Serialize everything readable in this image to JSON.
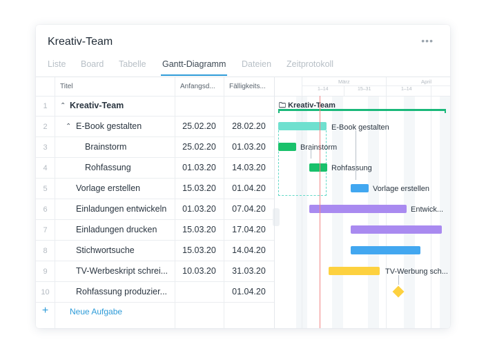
{
  "app": {
    "title": "Kreativ-Team",
    "more": "•••"
  },
  "tabs": [
    "Liste",
    "Board",
    "Tabelle",
    "Gantt-Diagramm",
    "Dateien",
    "Zeitprotokoll"
  ],
  "active_tab": "Gantt-Diagramm",
  "columns": {
    "title": "Titel",
    "start": "Anfangsd...",
    "due": "Fälligkeits..."
  },
  "rows": [
    {
      "num": "1",
      "title": "Kreativ-Team",
      "start": "",
      "due": ""
    },
    {
      "num": "2",
      "title": "E-Book gestalten",
      "start": "25.02.20",
      "due": "28.02.20"
    },
    {
      "num": "3",
      "title": "Brainstorm",
      "start": "25.02.20",
      "due": "01.03.20"
    },
    {
      "num": "4",
      "title": "Rohfassung",
      "start": "01.03.20",
      "due": "14.03.20"
    },
    {
      "num": "5",
      "title": "Vorlage erstellen",
      "start": "15.03.20",
      "due": "01.04.20"
    },
    {
      "num": "6",
      "title": "Einladungen entwickeln",
      "start": "01.03.20",
      "due": "07.04.20"
    },
    {
      "num": "7",
      "title": "Einladungen drucken",
      "start": "15.03.20",
      "due": "17.04.20"
    },
    {
      "num": "8",
      "title": "Stichwortsuche",
      "start": "15.03.20",
      "due": "14.04.20"
    },
    {
      "num": "9",
      "title": "TV-Werbeskript schrei...",
      "start": "10.03.20",
      "due": "31.03.20"
    },
    {
      "num": "10",
      "title": "Rohfassung produzier...",
      "start": "",
      "due": "01.04.20"
    }
  ],
  "new_task": {
    "icon": "+",
    "label": "Neue Aufgabe"
  },
  "timeline": {
    "months": [
      "März",
      "April"
    ],
    "weeks": [
      "1–14",
      "15–31",
      "1–14"
    ]
  },
  "gantt": {
    "project_label": "Kreativ-Team",
    "labels": [
      "E-Book gestalten",
      "Brainstorm",
      "Rohfassung",
      "Vorlage erstellen",
      "Entwick...",
      "TV-Werbung sch..."
    ]
  },
  "colors": {
    "accent": "#2d9bd8",
    "project": "#19b87a",
    "ebook": "#6fe0cf",
    "green": "#19c16b",
    "blue": "#42a7f0",
    "purple": "#a98af0",
    "yellow": "#fdd13f",
    "today": "#f08585"
  }
}
